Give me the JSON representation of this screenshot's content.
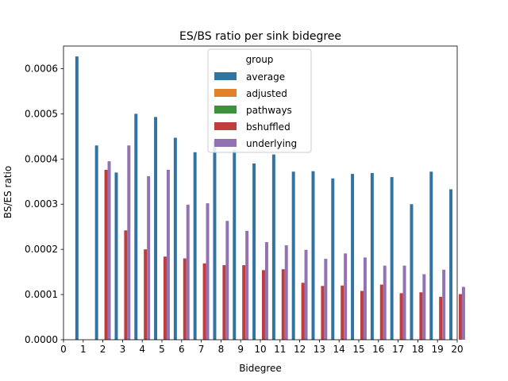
{
  "chart_data": {
    "type": "bar",
    "title": "ES/BS ratio per sink bidegree",
    "xlabel": "Bidegree",
    "ylabel": "BS/ES ratio",
    "ylim": [
      0,
      0.00065
    ],
    "yticks": [
      0,
      0.0001,
      0.0002,
      0.0003,
      0.0004,
      0.0005,
      0.0006
    ],
    "ytick_labels": [
      "0.0000",
      "0.0001",
      "0.0002",
      "0.0003",
      "0.0004",
      "0.0005",
      "0.0006"
    ],
    "x_tick_labels": [
      "0",
      "1",
      "2",
      "3",
      "4",
      "5",
      "6",
      "7",
      "8",
      "9",
      "10",
      "11",
      "12",
      "13",
      "14",
      "15",
      "16",
      "17",
      "18",
      "19",
      "20"
    ],
    "legend": {
      "title": "group",
      "position": "top-center"
    },
    "grid": false,
    "colors": {
      "average": "#3274a1",
      "adjusted": "#e1812c",
      "pathways": "#3a923a",
      "bshuffled": "#c03d3e",
      "underlying": "#9372b2"
    },
    "categories": [
      "1",
      "2",
      "3",
      "4",
      "5",
      "6",
      "7",
      "8",
      "9",
      "10",
      "11",
      "12",
      "13",
      "14",
      "15",
      "16",
      "17",
      "18",
      "19",
      "20"
    ],
    "series": [
      {
        "name": "average",
        "values": [
          0.000627,
          0.00043,
          0.00037,
          0.0005,
          0.000493,
          0.000447,
          0.000415,
          0.00044,
          0.00042,
          0.00039,
          0.00041,
          0.000372,
          0.000373,
          0.000357,
          0.000367,
          0.000369,
          0.00036,
          0.0003,
          0.000372,
          0.000333
        ]
      },
      {
        "name": "adjusted",
        "values": [
          0,
          0,
          0,
          0,
          0,
          0,
          0,
          0,
          0,
          0,
          0,
          0,
          0,
          0,
          0,
          0,
          0,
          0,
          0,
          0
        ]
      },
      {
        "name": "pathways",
        "values": [
          0,
          0,
          0,
          0,
          0,
          0,
          0,
          0,
          0,
          0,
          0,
          0,
          0,
          0,
          0,
          0,
          0,
          0,
          0,
          0
        ]
      },
      {
        "name": "bshuffled",
        "values": [
          null,
          0.000376,
          0.000242,
          0.0002,
          0.000184,
          0.00018,
          0.000169,
          0.000165,
          0.000165,
          0.000154,
          0.000156,
          0.000126,
          0.000119,
          0.00012,
          0.000108,
          0.000122,
          0.000103,
          0.000105,
          9.5e-05,
          0.000101
        ]
      },
      {
        "name": "underlying",
        "values": [
          null,
          0.000395,
          0.00043,
          0.000362,
          0.000376,
          0.000299,
          0.000302,
          0.000263,
          0.000241,
          0.000216,
          0.000209,
          0.000199,
          0.000179,
          0.000191,
          0.000182,
          0.000164,
          0.000164,
          0.000145,
          0.000155,
          0.000117
        ]
      }
    ]
  }
}
